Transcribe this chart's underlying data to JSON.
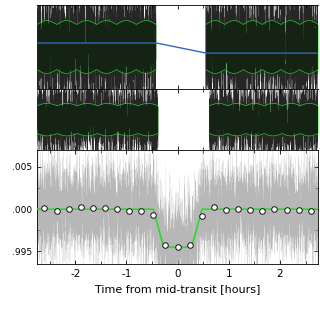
{
  "xlim": [
    -2.75,
    2.75
  ],
  "panel3_ylim": [
    0.9935,
    1.007
  ],
  "panel3_yticks": [
    0.995,
    1.0,
    1.005
  ],
  "panel3_yticklabels": [
    ".995",
    ".000",
    ".005"
  ],
  "xlabel": "Time from mid-transit [hours]",
  "xticks": [
    -2,
    -1,
    0,
    1,
    2
  ],
  "green_color": "#22dd22",
  "blue_color": "#3366bb",
  "white_circle_color": "#ffffff",
  "circle_edge_color": "#111111",
  "background_color": "#ffffff",
  "panel1_noise_amp": 0.018,
  "panel2_noise_amp": 0.012,
  "panel3_noise_amp": 0.0028,
  "transit_depth": 0.0045,
  "n_circles": 23,
  "seed": 7
}
